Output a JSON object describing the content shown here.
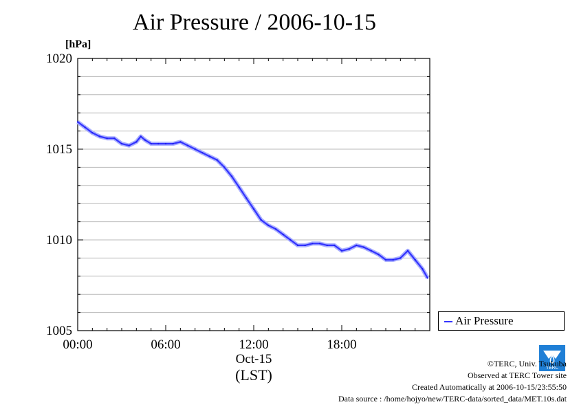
{
  "chart_data": {
    "type": "line",
    "title": "Air Pressure / 2006-10-15",
    "ylabel": "[hPa]",
    "ylim": [
      1005,
      1020
    ],
    "yticks": [
      "1005",
      "1010",
      "1015",
      "1020"
    ],
    "xlim": [
      0,
      24
    ],
    "xticks": [
      "00:00",
      "06:00",
      "12:00",
      "18:00"
    ],
    "xlabel_date": "Oct-15",
    "xlabel_unit": "(LST)",
    "grid": true,
    "legend_position": "right",
    "series": [
      {
        "name": "Air Pressure",
        "color": "#3333ff",
        "x": [
          0.0,
          0.5,
          1.0,
          1.5,
          2.0,
          2.5,
          3.0,
          3.5,
          4.0,
          4.3,
          4.6,
          5.0,
          5.5,
          6.0,
          6.5,
          7.0,
          7.5,
          8.0,
          8.5,
          9.0,
          9.5,
          10.0,
          10.5,
          11.0,
          11.5,
          12.0,
          12.5,
          13.0,
          13.5,
          14.0,
          14.5,
          15.0,
          15.5,
          16.0,
          16.5,
          17.0,
          17.5,
          18.0,
          18.5,
          19.0,
          19.5,
          20.0,
          20.5,
          21.0,
          21.5,
          22.0,
          22.5,
          23.0,
          23.5,
          23.85
        ],
        "values": [
          1016.5,
          1016.2,
          1015.9,
          1015.7,
          1015.6,
          1015.6,
          1015.3,
          1015.2,
          1015.4,
          1015.7,
          1015.5,
          1015.3,
          1015.3,
          1015.3,
          1015.3,
          1015.4,
          1015.2,
          1015.0,
          1014.8,
          1014.6,
          1014.4,
          1014.0,
          1013.5,
          1012.9,
          1012.3,
          1011.7,
          1011.1,
          1010.8,
          1010.6,
          1010.3,
          1010.0,
          1009.7,
          1009.7,
          1009.8,
          1009.8,
          1009.7,
          1009.7,
          1009.4,
          1009.5,
          1009.7,
          1009.6,
          1009.4,
          1009.2,
          1008.9,
          1008.9,
          1009.0,
          1009.4,
          1008.9,
          1008.4,
          1007.9
        ]
      }
    ]
  },
  "credits": {
    "copyright": "©TERC, Univ. Tsukuba",
    "observed": "Observed at TERC Tower site",
    "created": "Created Automatically at 2006-10-15/23:55:50",
    "source": "Data source : /home/hojyo/new/TERC-data/sorted_data/MET.10s.dat",
    "logo_text": "TERC"
  }
}
